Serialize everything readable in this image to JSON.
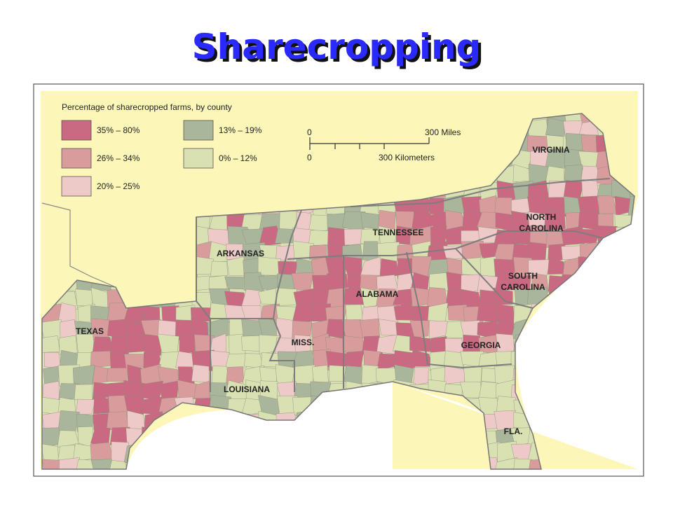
{
  "header": {
    "title": "Sharecropping"
  },
  "legend": {
    "title": "Percentage of sharecropped farms, by county",
    "items": [
      {
        "label": "35% – 80%",
        "color": "#c96a82"
      },
      {
        "label": "26% – 34%",
        "color": "#d99c9c"
      },
      {
        "label": "20% – 25%",
        "color": "#edcac8"
      },
      {
        "label": "13% – 19%",
        "color": "#a9b69b"
      },
      {
        "label": "0% – 12%",
        "color": "#d9e1b3"
      }
    ]
  },
  "scale": {
    "miles_start": "0",
    "miles_end": "300 Miles",
    "km_start": "0",
    "km_end": "300 Kilometers"
  },
  "states": [
    {
      "lines": [
        "TEXAS"
      ]
    },
    {
      "lines": [
        "ARKANSAS"
      ]
    },
    {
      "lines": [
        "LOUISIANA"
      ]
    },
    {
      "lines": [
        "MISS."
      ]
    },
    {
      "lines": [
        "ALABAMA"
      ]
    },
    {
      "lines": [
        "TENNESSEE"
      ]
    },
    {
      "lines": [
        "GEORGIA"
      ]
    },
    {
      "lines": [
        "FLA."
      ]
    },
    {
      "lines": [
        "SOUTH",
        "CAROLINA"
      ]
    },
    {
      "lines": [
        "NORTH",
        "CAROLINA"
      ]
    },
    {
      "lines": [
        "VIRGINIA"
      ]
    }
  ]
}
